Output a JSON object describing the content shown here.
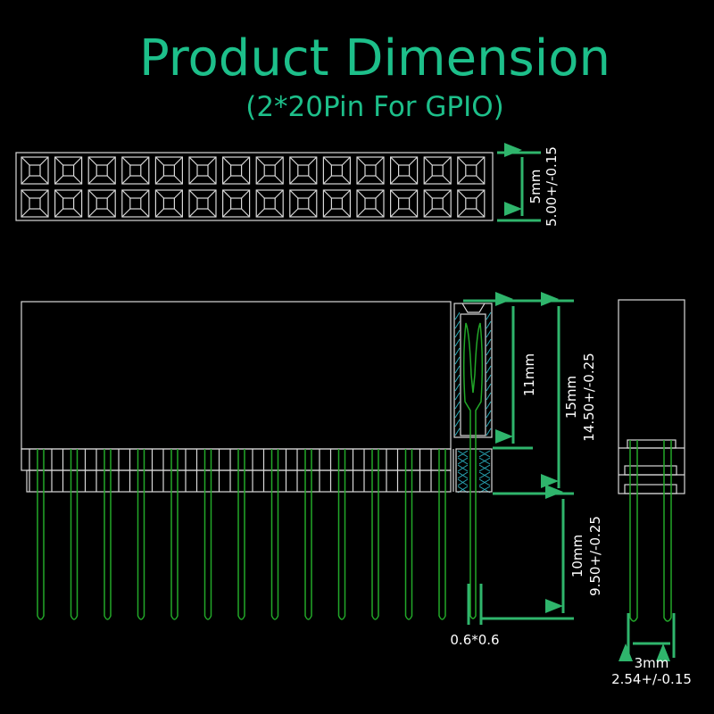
{
  "title": "Product Dimension",
  "subtitle": "(2*20Pin For GPIO)",
  "colors": {
    "title": "#1dbf8a",
    "dimension": "#2fb56c",
    "outline": "#d9d9d9",
    "pin": "#22a829",
    "background": "#000000"
  },
  "top_view": {
    "rows": 2,
    "columns": 14,
    "height_label": "5mm",
    "height_tolerance": "5.00+/-0.15"
  },
  "side_view": {
    "pins_visible": 13,
    "socket_depth": "11mm",
    "body_height": "15mm",
    "body_tolerance": "14.50+/-0.25",
    "pin_length": "10mm",
    "pin_tolerance": "9.50+/-0.25",
    "pin_size": "0.6*0.6"
  },
  "end_view": {
    "pitch": "3mm",
    "pitch_tolerance": "2.54+/-0.15"
  }
}
